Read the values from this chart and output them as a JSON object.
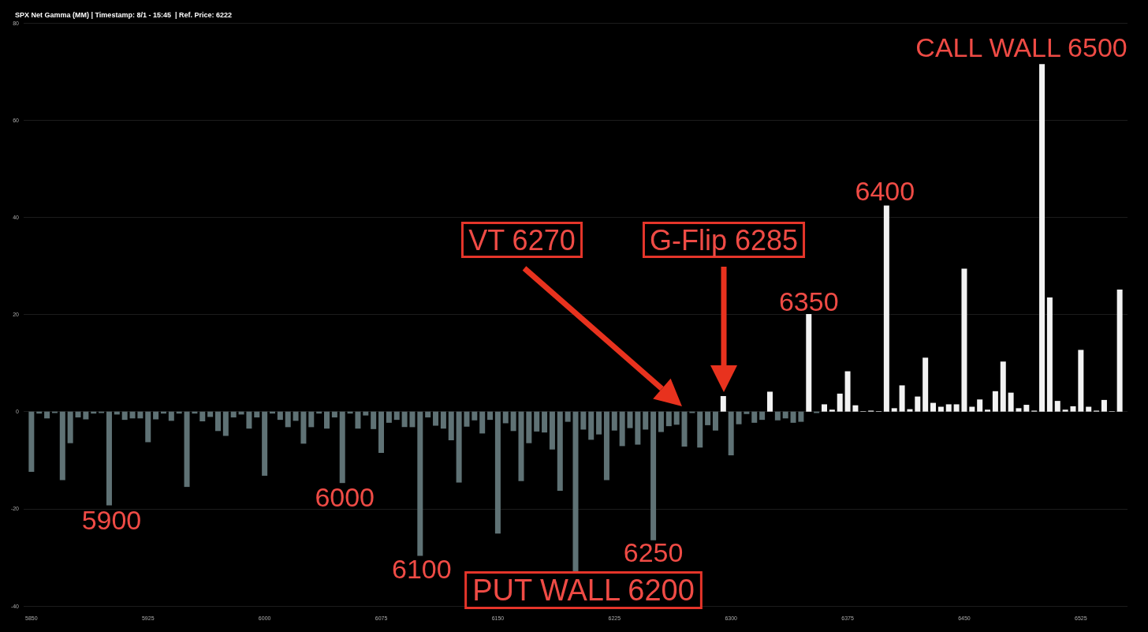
{
  "chart_data": {
    "type": "bar",
    "title": "SPX Net Gamma (MM) | Timestamp: 8/1 - 15:45  | Ref. Price: 6222",
    "x": [
      5850,
      5855,
      5860,
      5865,
      5870,
      5875,
      5880,
      5885,
      5890,
      5895,
      5900,
      5905,
      5910,
      5915,
      5920,
      5925,
      5930,
      5935,
      5940,
      5945,
      5950,
      5955,
      5960,
      5965,
      5970,
      5975,
      5980,
      5985,
      5990,
      5995,
      6000,
      6005,
      6010,
      6015,
      6020,
      6025,
      6030,
      6035,
      6040,
      6045,
      6050,
      6055,
      6060,
      6065,
      6070,
      6075,
      6080,
      6085,
      6090,
      6095,
      6100,
      6105,
      6110,
      6115,
      6120,
      6125,
      6130,
      6135,
      6140,
      6145,
      6150,
      6155,
      6160,
      6165,
      6170,
      6175,
      6180,
      6185,
      6190,
      6195,
      6200,
      6205,
      6210,
      6215,
      6220,
      6225,
      6230,
      6235,
      6240,
      6245,
      6250,
      6255,
      6260,
      6265,
      6270,
      6275,
      6280,
      6285,
      6290,
      6295,
      6300,
      6305,
      6310,
      6315,
      6320,
      6325,
      6330,
      6335,
      6340,
      6345,
      6350,
      6355,
      6360,
      6365,
      6370,
      6375,
      6380,
      6385,
      6390,
      6395,
      6400,
      6405,
      6410,
      6415,
      6420,
      6425,
      6430,
      6435,
      6440,
      6445,
      6450,
      6455,
      6460,
      6465,
      6470,
      6475,
      6480,
      6485,
      6490,
      6495,
      6500,
      6505,
      6510,
      6515,
      6520,
      6525,
      6530,
      6535,
      6540,
      6545,
      6550
    ],
    "series": [
      {
        "color": "#5f7275",
        "values": [
          -12.4,
          -0.4,
          -1.4,
          -0.3,
          -14.1,
          -6.5,
          -1.2,
          -1.6,
          -0.4,
          -0.3,
          -19.3,
          -0.6,
          -1.7,
          -1.4,
          -1.4,
          -6.3,
          -1.6,
          -0.4,
          -1.9,
          -0.4,
          -15.5,
          -0.4,
          -2.0,
          -1.1,
          -4.0,
          -5.0,
          -1.2,
          -0.6,
          -3.5,
          -1.2,
          -13.2,
          -0.4,
          -1.7,
          -3.2,
          -1.9,
          -6.6,
          -3.2,
          -0.4,
          -3.5,
          -1.2,
          -14.7,
          -0.4,
          -3.5,
          -0.8,
          -3.6,
          -8.5,
          -2.3,
          -1.7,
          -3.2,
          -3.2,
          -29.7,
          -1.2,
          -2.9,
          -3.5,
          -5.9,
          -14.6,
          -3.1,
          -1.8,
          -4.5,
          -1.7,
          -25.1,
          -2.4,
          -4.0,
          -14.3,
          -6.5,
          -4.1,
          -4.3,
          -7.8,
          -16.3,
          -2.1,
          -33.2,
          -3.7,
          -5.8,
          -4.7,
          -14.1,
          -3.9,
          -7.1,
          -3.4,
          -6.8,
          -3.7,
          -26.5,
          -4.2,
          -3.0,
          -2.7,
          -7.2,
          -0.3,
          -7.4,
          -2.8,
          -3.9,
          null,
          -9.0,
          -2.6,
          -0.5,
          -2.3,
          -1.7,
          null,
          -1.8,
          -1.4,
          -2.3,
          -2.1,
          null,
          -0.3,
          null,
          null,
          null,
          null,
          null,
          null,
          null,
          null,
          null,
          null,
          null,
          null,
          null,
          null,
          null,
          null,
          null,
          null,
          null,
          null,
          null,
          null,
          null,
          null,
          null,
          null,
          null,
          null,
          null,
          null,
          null,
          null,
          null,
          null,
          null,
          null,
          null,
          null,
          null
        ]
      },
      {
        "color": "#f2f2f2",
        "values": [
          null,
          null,
          null,
          null,
          null,
          null,
          null,
          null,
          null,
          null,
          null,
          null,
          null,
          null,
          null,
          null,
          null,
          null,
          null,
          null,
          null,
          null,
          null,
          null,
          null,
          null,
          null,
          null,
          null,
          null,
          null,
          null,
          null,
          null,
          null,
          null,
          null,
          null,
          null,
          null,
          null,
          null,
          null,
          null,
          null,
          null,
          null,
          null,
          null,
          null,
          null,
          null,
          null,
          null,
          null,
          null,
          null,
          null,
          null,
          null,
          null,
          null,
          null,
          null,
          null,
          null,
          null,
          null,
          null,
          null,
          null,
          null,
          null,
          null,
          null,
          null,
          null,
          null,
          null,
          null,
          null,
          null,
          null,
          null,
          null,
          null,
          null,
          null,
          null,
          3.2,
          null,
          null,
          null,
          null,
          null,
          4.1,
          null,
          null,
          null,
          null,
          20.1,
          null,
          1.5,
          0.4,
          3.7,
          8.3,
          1.3,
          0.1,
          0.2,
          0.1,
          42.4,
          0.7,
          5.4,
          0.5,
          3.1,
          11.1,
          1.8,
          1.0,
          1.5,
          1.5,
          29.4,
          1.0,
          2.5,
          0.4,
          4.2,
          10.3,
          3.9,
          0.7,
          1.4,
          0.2,
          71.5,
          23.5,
          2.2,
          0.4,
          1.1,
          12.7,
          1.0,
          0.2,
          2.4,
          0.1,
          25.1
        ]
      }
    ],
    "xlim": [
      5845,
      6555
    ],
    "xticks": [
      5850,
      5925,
      6000,
      6075,
      6150,
      6225,
      6300,
      6375,
      6450,
      6525
    ],
    "ylim": [
      -40,
      80
    ],
    "yticks": [
      -40,
      -20,
      0,
      20,
      40,
      60,
      80
    ],
    "grid": "y",
    "annotations": [
      {
        "text": "5900",
        "x": 5900,
        "y": -19.3
      },
      {
        "text": "6000",
        "x": 6050,
        "y": -14.7
      },
      {
        "text": "6100",
        "x": 6100,
        "y": -29.7
      },
      {
        "text": "6250",
        "x": 6250,
        "y": -26.5
      },
      {
        "text": "PUT WALL 6200",
        "x": 6200,
        "y": -33.2
      },
      "VT 6270",
      "G-Flip 6285",
      {
        "text": "6350",
        "x": 6350,
        "y": 20.1
      },
      {
        "text": "6400",
        "x": 6400,
        "y": 42.4
      },
      {
        "text": "CALL WALL 6500",
        "x": 6500,
        "y": 71.5
      }
    ]
  }
}
